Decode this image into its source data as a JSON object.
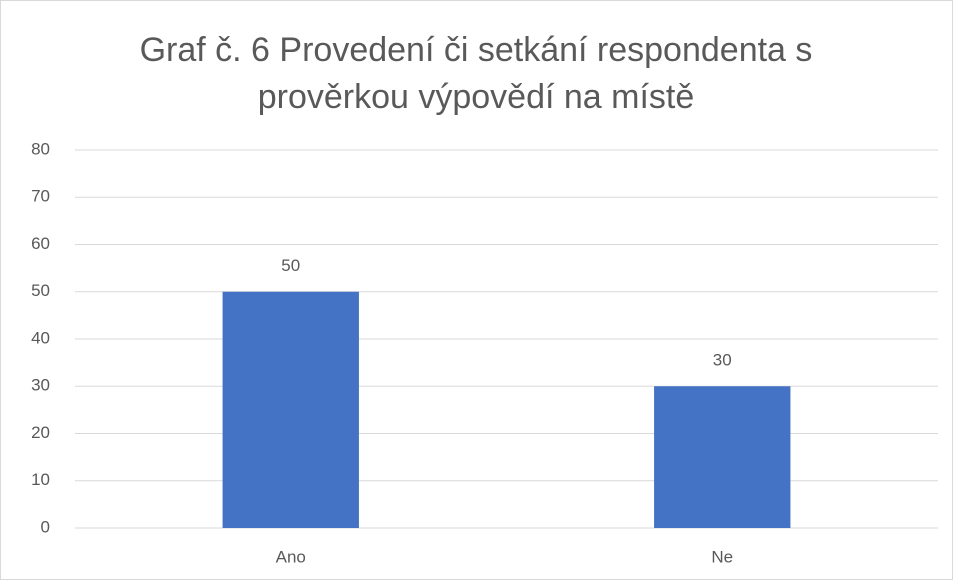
{
  "chart_data": {
    "type": "bar",
    "title": "Graf č. 6 Provedení či setkání respondenta s prověrkou výpovědí na místě",
    "categories": [
      "Ano",
      "Ne"
    ],
    "values": [
      50,
      30
    ],
    "color": "#4472c4",
    "ylim": [
      0,
      80
    ],
    "yticks": [
      0,
      10,
      20,
      30,
      40,
      50,
      60,
      70,
      80
    ],
    "grid": true
  }
}
